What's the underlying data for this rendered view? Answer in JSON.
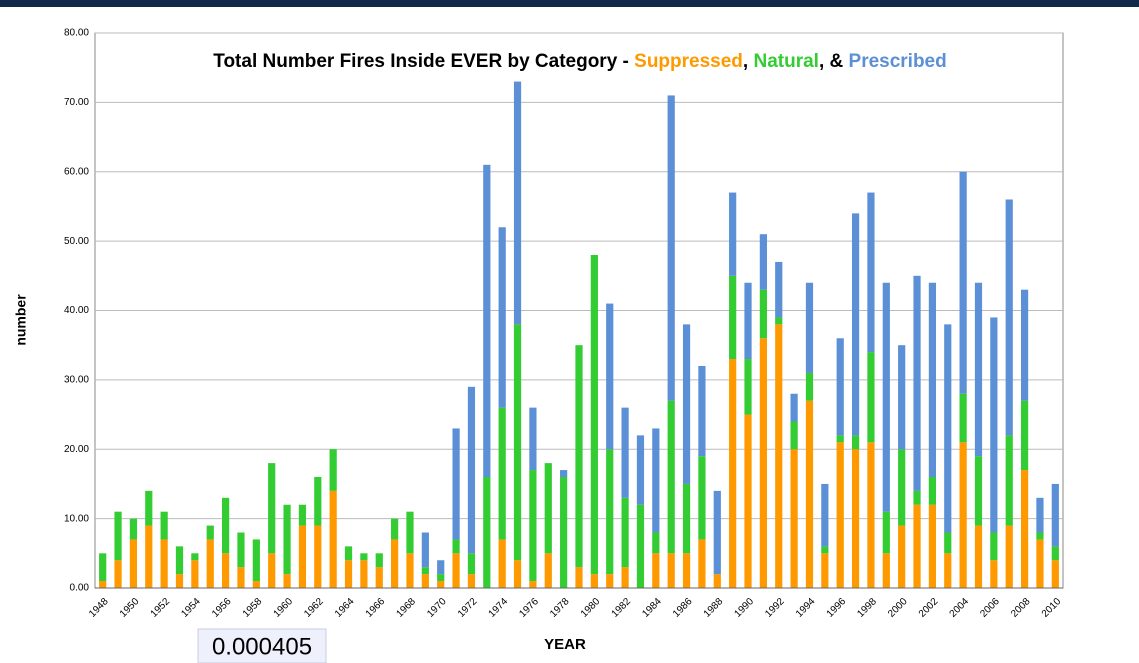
{
  "chart_data": {
    "type": "stacked_bar",
    "title_prefix": "Total Number Fires Inside EVER by Category - ",
    "title_separators": [
      ", ",
      ", & "
    ],
    "xlabel": "YEAR",
    "ylabel": "number",
    "status_value": "0.000405",
    "categories": [
      "1948",
      null,
      "1950",
      null,
      "1952",
      null,
      "1954",
      null,
      "1956",
      null,
      "1958",
      null,
      "1960",
      null,
      "1962",
      null,
      "1964",
      null,
      "1966",
      null,
      "1968",
      null,
      "1970",
      null,
      "1972",
      null,
      "1974",
      null,
      "1976",
      null,
      "1978",
      null,
      "1980",
      null,
      "1982",
      null,
      "1984",
      null,
      "1986",
      null,
      "1988",
      null,
      "1990",
      null,
      "1992",
      null,
      "1994",
      null,
      "1996",
      null,
      "1998",
      null,
      "2000",
      null,
      "2002",
      null,
      "2004",
      null,
      "2006",
      null,
      "2008",
      null,
      "2010"
    ],
    "series": [
      {
        "name": "Suppressed",
        "color": "#ff9900",
        "values": [
          1,
          4,
          7,
          9,
          7,
          2,
          4,
          7,
          5,
          3,
          1,
          5,
          2,
          9,
          9,
          14,
          4,
          4,
          3,
          7,
          5,
          2,
          1,
          5,
          2,
          0,
          7,
          4,
          1,
          5,
          0,
          3,
          2,
          2,
          3,
          0,
          5,
          5,
          5,
          7,
          2,
          33,
          25,
          36,
          38,
          20,
          27,
          5,
          21,
          20,
          21,
          5,
          9,
          12,
          12,
          5,
          21,
          9,
          4,
          9,
          17,
          7,
          4
        ]
      },
      {
        "name": "Natural",
        "color": "#33cc33",
        "values": [
          4,
          7,
          3,
          5,
          4,
          4,
          1,
          2,
          8,
          5,
          6,
          13,
          10,
          3,
          7,
          6,
          2,
          1,
          2,
          3,
          6,
          1,
          1,
          2,
          3,
          16,
          19,
          34,
          16,
          13,
          16,
          32,
          46,
          18,
          10,
          12,
          3,
          22,
          10,
          12,
          0,
          12,
          8,
          7,
          1,
          4,
          4,
          1,
          1,
          2,
          13,
          6,
          11,
          2,
          4,
          3,
          7,
          10,
          4,
          13,
          10,
          1,
          2
        ]
      },
      {
        "name": "Prescribed",
        "color": "#5b8fd6",
        "values": [
          0,
          0,
          0,
          0,
          0,
          0,
          0,
          0,
          0,
          0,
          0,
          0,
          0,
          0,
          0,
          0,
          0,
          0,
          0,
          0,
          0,
          5,
          2,
          16,
          24,
          45,
          26,
          35,
          9,
          0,
          1,
          0,
          0,
          21,
          13,
          10,
          15,
          44,
          23,
          13,
          12,
          12,
          11,
          8,
          8,
          4,
          13,
          9,
          14,
          32,
          23,
          33,
          15,
          31,
          28,
          30,
          32,
          25,
          31,
          34,
          16,
          5,
          9
        ]
      }
    ],
    "ylim": [
      0,
      80
    ],
    "yticks": [
      {
        "value": 0,
        "label": "0.00"
      },
      {
        "value": 10,
        "label": "10.00"
      },
      {
        "value": 20,
        "label": "20.00"
      },
      {
        "value": 30,
        "label": "30.00"
      },
      {
        "value": 40,
        "label": "40.00"
      },
      {
        "value": 50,
        "label": "50.00"
      },
      {
        "value": 60,
        "label": "60.00"
      },
      {
        "value": 70,
        "label": "70.00"
      },
      {
        "value": 80,
        "label": "80.00"
      }
    ],
    "grid": true
  }
}
